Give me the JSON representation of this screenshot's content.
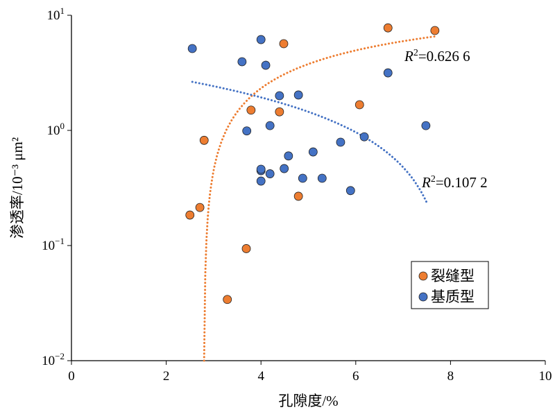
{
  "chart_data": {
    "type": "scatter",
    "xlabel": "孔隙度/%",
    "ylabel": "渗透率/10⁻³ μm²",
    "xlim": [
      0,
      10
    ],
    "ylim": [
      0.01,
      10
    ],
    "yscale": "log",
    "x_ticks": [
      "0",
      "2",
      "4",
      "6",
      "8",
      "10"
    ],
    "y_ticks": [
      {
        "base": "10",
        "exp": "1"
      },
      {
        "base": "10",
        "exp": "0"
      },
      {
        "base": "10",
        "exp": "−1"
      },
      {
        "base": "10",
        "exp": "−2"
      }
    ],
    "legend_position": "bottom-right",
    "series": [
      {
        "name": "裂缝型",
        "color": "#ED7D31",
        "points": [
          [
            2.5,
            0.184
          ],
          [
            2.71,
            0.214
          ],
          [
            2.8,
            0.82
          ],
          [
            3.29,
            0.034
          ],
          [
            3.69,
            0.094
          ],
          [
            3.79,
            1.5
          ],
          [
            4.39,
            1.45
          ],
          [
            4.48,
            5.66
          ],
          [
            4.79,
            0.268
          ],
          [
            6.08,
            1.67
          ],
          [
            6.68,
            7.77
          ],
          [
            7.67,
            7.37
          ]
        ],
        "trendline": {
          "type": "logarithmic",
          "a": 6.5,
          "x0": 2.8,
          "x_range": [
            2.8,
            7.7
          ],
          "r2_label": "R²=0.626 6"
        }
      },
      {
        "name": "基质型",
        "color": "#4472C4",
        "points": [
          [
            2.55,
            5.14
          ],
          [
            3.6,
            3.95
          ],
          [
            4.0,
            6.15
          ],
          [
            4.1,
            3.68
          ],
          [
            4.39,
            2.0
          ],
          [
            4.79,
            2.03
          ],
          [
            3.7,
            0.99
          ],
          [
            4.19,
            1.1
          ],
          [
            4.0,
            0.447
          ],
          [
            4.0,
            0.46
          ],
          [
            4.0,
            0.363
          ],
          [
            4.19,
            0.42
          ],
          [
            4.49,
            0.466
          ],
          [
            4.58,
            0.6
          ],
          [
            4.88,
            0.384
          ],
          [
            5.1,
            0.65
          ],
          [
            5.29,
            0.384
          ],
          [
            5.68,
            0.79
          ],
          [
            5.89,
            0.3
          ],
          [
            6.18,
            0.88
          ],
          [
            6.68,
            3.16
          ],
          [
            7.48,
            1.1
          ]
        ],
        "trendline": {
          "type": "linear",
          "slope": -0.486,
          "intercept": 3.88,
          "x_range": [
            2.55,
            7.5
          ],
          "r2_label": "R²=0.107 2"
        }
      }
    ]
  }
}
